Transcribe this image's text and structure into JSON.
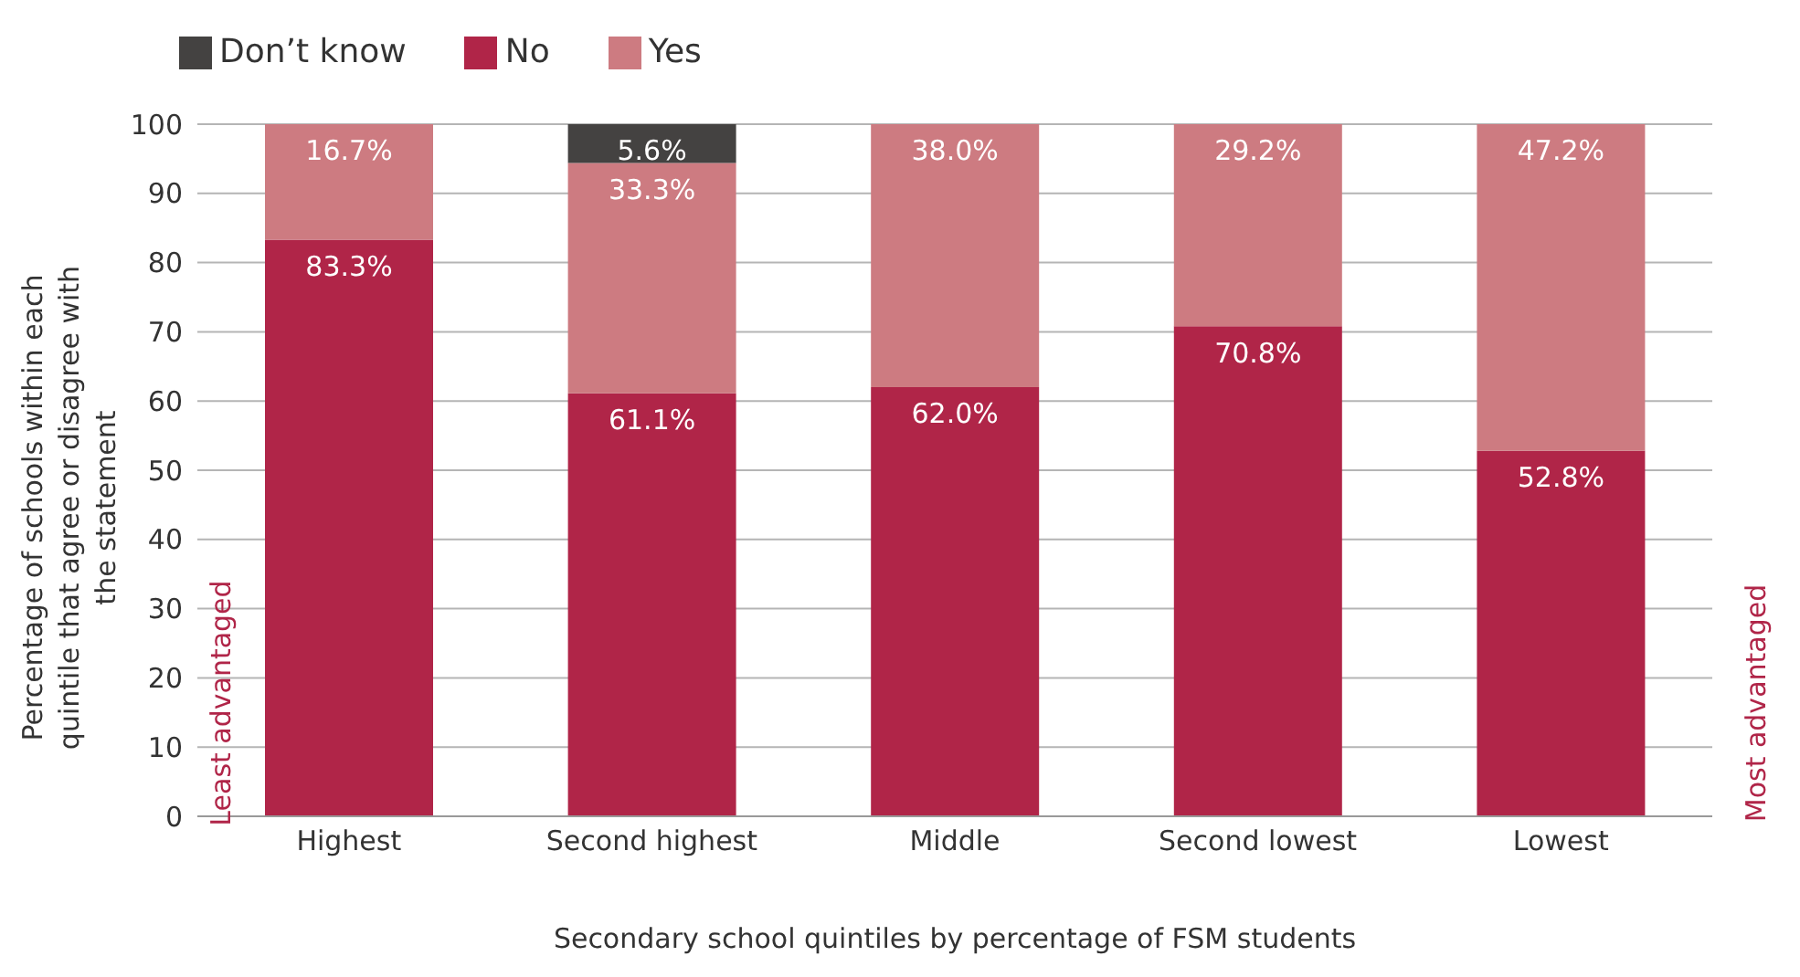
{
  "chart_data": {
    "type": "bar",
    "stacked": true,
    "xlabel": "Secondary school quintiles by percentage of FSM students",
    "ylabel": "Percentage of schools within each quintile that agree or disagree with the statement",
    "categories": [
      "Highest",
      "Second highest",
      "Middle",
      "Second lowest",
      "Lowest"
    ],
    "series": [
      {
        "name": "No",
        "color": "#b02548",
        "values": [
          83.3,
          61.1,
          62.0,
          70.8,
          52.8
        ],
        "value_labels": [
          "83.3%",
          "61.1%",
          "62.0%",
          "70.8%",
          "52.8%"
        ]
      },
      {
        "name": "Yes",
        "color": "#cd7b81",
        "values": [
          16.7,
          33.3,
          38.0,
          29.2,
          47.2
        ],
        "value_labels": [
          "16.7%",
          "33.3%",
          "38.0%",
          "29.2%",
          "47.2%"
        ]
      },
      {
        "name": "Don’t know",
        "color": "#444241",
        "values": [
          null,
          5.6,
          null,
          null,
          null
        ],
        "value_labels": [
          null,
          "5.6%",
          null,
          null,
          null
        ]
      }
    ],
    "ylim": [
      0,
      100
    ],
    "yticks": [
      0,
      10,
      20,
      30,
      40,
      50,
      60,
      70,
      80,
      90,
      100
    ],
    "grid": "y",
    "legend": "top left",
    "annotations": [
      "Least advantaged",
      "Most advantaged"
    ]
  }
}
